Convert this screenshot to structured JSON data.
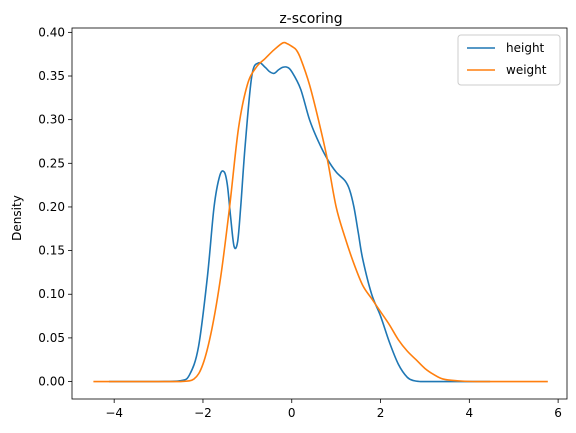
{
  "chart_data": {
    "type": "line",
    "title": "z-scoring",
    "xlabel": "",
    "ylabel": "Density",
    "xlim": [
      -4.95,
      6.2
    ],
    "ylim": [
      -0.02,
      0.405
    ],
    "xticks": [
      -4,
      -2,
      0,
      2,
      4,
      6
    ],
    "xtick_labels": [
      "−4",
      "−2",
      "0",
      "2",
      "4",
      "6"
    ],
    "yticks": [
      0.0,
      0.05,
      0.1,
      0.15,
      0.2,
      0.25,
      0.3,
      0.35,
      0.4
    ],
    "ytick_labels": [
      "0.00",
      "0.05",
      "0.10",
      "0.15",
      "0.20",
      "0.25",
      "0.30",
      "0.35",
      "0.40"
    ],
    "grid": false,
    "legend_position": "top-right",
    "series": [
      {
        "name": "height",
        "color": "#1f77b4",
        "x": [
          -4.1,
          -3.0,
          -2.5,
          -2.3,
          -2.1,
          -1.9,
          -1.75,
          -1.62,
          -1.52,
          -1.45,
          -1.38,
          -1.3,
          -1.22,
          -1.15,
          -1.05,
          -0.9,
          -0.75,
          -0.6,
          -0.5,
          -0.4,
          -0.3,
          -0.2,
          -0.1,
          0.0,
          0.2,
          0.4,
          0.6,
          0.8,
          1.0,
          1.2,
          1.3,
          1.4,
          1.5,
          1.6,
          1.8,
          2.0,
          2.2,
          2.4,
          2.6,
          2.75,
          2.9,
          3.1,
          3.5,
          4.45
        ],
        "y": [
          0.0,
          0.0,
          0.001,
          0.008,
          0.04,
          0.12,
          0.2,
          0.236,
          0.24,
          0.225,
          0.19,
          0.155,
          0.16,
          0.2,
          0.27,
          0.35,
          0.365,
          0.36,
          0.355,
          0.353,
          0.357,
          0.36,
          0.36,
          0.355,
          0.335,
          0.3,
          0.275,
          0.255,
          0.24,
          0.23,
          0.22,
          0.2,
          0.17,
          0.14,
          0.1,
          0.075,
          0.045,
          0.02,
          0.005,
          0.001,
          0.0,
          0.0,
          0.0,
          0.0
        ]
      },
      {
        "name": "weight",
        "color": "#ff7f0e",
        "x": [
          -4.45,
          -3.0,
          -2.5,
          -2.2,
          -2.0,
          -1.8,
          -1.6,
          -1.4,
          -1.2,
          -1.0,
          -0.8,
          -0.6,
          -0.4,
          -0.2,
          -0.1,
          0.0,
          0.1,
          0.2,
          0.4,
          0.6,
          0.8,
          1.0,
          1.2,
          1.4,
          1.6,
          1.8,
          2.0,
          2.2,
          2.4,
          2.6,
          2.8,
          3.0,
          3.2,
          3.4,
          3.7,
          4.2,
          5.75
        ],
        "y": [
          0.0,
          0.0,
          0.0,
          0.003,
          0.02,
          0.06,
          0.12,
          0.2,
          0.29,
          0.34,
          0.36,
          0.37,
          0.38,
          0.388,
          0.387,
          0.384,
          0.38,
          0.37,
          0.34,
          0.3,
          0.255,
          0.2,
          0.165,
          0.135,
          0.11,
          0.095,
          0.08,
          0.065,
          0.048,
          0.035,
          0.025,
          0.015,
          0.008,
          0.003,
          0.001,
          0.0,
          0.0
        ]
      }
    ]
  }
}
